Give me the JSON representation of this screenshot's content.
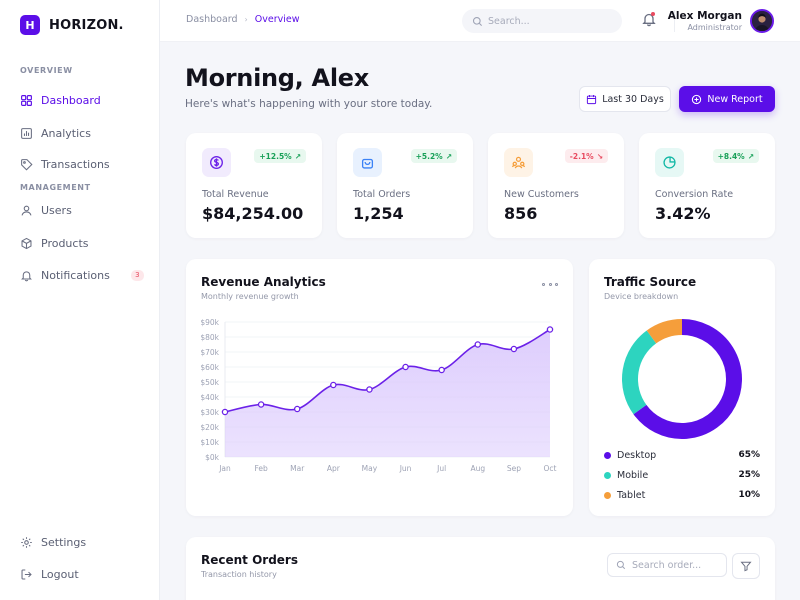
{
  "brand": {
    "letter": "H",
    "name": "HORIZON.",
    "accent": "#5b0ee8"
  },
  "sidebar": {
    "sections": [
      "OVERVIEW",
      "MANAGEMENT"
    ],
    "items": [
      {
        "label": "Dashboard",
        "icon": "grid-icon",
        "active": true
      },
      {
        "label": "Analytics",
        "icon": "bar-chart-icon"
      },
      {
        "label": "Transactions",
        "icon": "tag-icon"
      },
      {
        "label": "Users",
        "icon": "users-icon"
      },
      {
        "label": "Products",
        "icon": "box-icon"
      },
      {
        "label": "Notifications",
        "icon": "bell-icon",
        "badge": "3"
      }
    ],
    "footer": [
      {
        "label": "Settings",
        "icon": "gear-icon"
      },
      {
        "label": "Logout",
        "icon": "logout-icon"
      }
    ]
  },
  "header": {
    "breadcrumb": [
      "Dashboard",
      "Overview"
    ],
    "search_placeholder": "Search...",
    "user": {
      "name": "Alex Morgan",
      "role": "Administrator"
    }
  },
  "page": {
    "greeting": "Morning, Alex",
    "subtitle": "Here's what's happening with your store today.",
    "range_button": "Last 30 Days",
    "primary_button": "New Report"
  },
  "stats": [
    {
      "label": "Total Revenue",
      "value": "$84,254.00",
      "change": "+12.5%",
      "trend": "up",
      "icon": "dollar-icon",
      "icon_color": "#6b21e8",
      "icon_bg": "#f1ebfd"
    },
    {
      "label": "Total Orders",
      "value": "1,254",
      "change": "+5.2%",
      "trend": "up",
      "icon": "shopping-bag-icon",
      "icon_color": "#3b82f6",
      "icon_bg": "#e8f1fe"
    },
    {
      "label": "New Customers",
      "value": "856",
      "change": "-2.1%",
      "trend": "down",
      "icon": "users-icon",
      "icon_color": "#f59e3b",
      "icon_bg": "#fef3e6"
    },
    {
      "label": "Conversion Rate",
      "value": "3.42%",
      "change": "+8.4%",
      "trend": "up",
      "icon": "pie-chart-icon",
      "icon_color": "#14b8a6",
      "icon_bg": "#e6f8f5"
    }
  ],
  "revenue": {
    "title": "Revenue Analytics",
    "subtitle": "Monthly revenue growth"
  },
  "chart_data": [
    {
      "type": "area",
      "title": "Revenue Analytics",
      "subtitle": "Monthly revenue growth",
      "categories": [
        "Jan",
        "Feb",
        "Mar",
        "Apr",
        "May",
        "Jun",
        "Jul",
        "Aug",
        "Sep",
        "Oct"
      ],
      "series": [
        {
          "values": [
            30,
            35,
            32,
            48,
            45,
            60,
            58,
            75,
            72,
            85
          ]
        }
      ],
      "y_ticks": [
        "$0k",
        "$10k",
        "$20k",
        "$30k",
        "$40k",
        "$50k",
        "$60k",
        "$70k",
        "$80k",
        "$90k"
      ],
      "ylim": [
        0,
        90
      ],
      "grid": true,
      "color": "#6b21e8",
      "fill": "#dccbfd"
    },
    {
      "type": "pie",
      "title": "Traffic Source",
      "subtitle": "Device breakdown",
      "slices": [
        {
          "label": "Desktop",
          "value": 65,
          "display": "65%",
          "color": "#5b0ee8"
        },
        {
          "label": "Mobile",
          "value": 25,
          "display": "25%",
          "color": "#2dd4bf"
        },
        {
          "label": "Tablet",
          "value": 10,
          "display": "10%",
          "color": "#f59e3b"
        }
      ]
    }
  ],
  "orders": {
    "title": "Recent Orders",
    "subtitle": "Transaction history",
    "search_placeholder": "Search order..."
  }
}
